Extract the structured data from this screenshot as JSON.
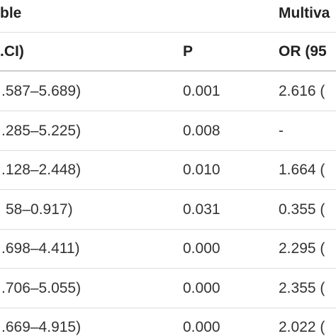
{
  "header": {
    "group_left": "ble",
    "group_right": "Multiva",
    "columns": [
      ".CI)",
      "P",
      "OR (95"
    ]
  },
  "table": {
    "rows": [
      [
        ".587–5.689)",
        "0.001",
        "2.616 ("
      ],
      [
        ".285–5.225)",
        "0.008",
        "-"
      ],
      [
        ".128–2.448)",
        "0.010",
        "1.664 ("
      ],
      [
        "58–0.917)",
        "0.031",
        "0.355 ("
      ],
      [
        ".698–4.411)",
        "0.000",
        "2.295 ("
      ],
      [
        ".706–5.055)",
        "0.000",
        "2.355 ("
      ],
      [
        ".669–4.915)",
        "0.000",
        "2.022 ("
      ]
    ]
  }
}
